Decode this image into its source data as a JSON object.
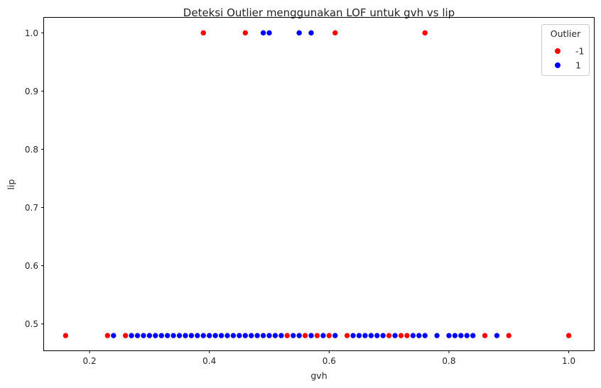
{
  "chart_data": {
    "type": "scatter",
    "title": "Deteksi Outlier menggunakan LOF untuk gvh vs lip",
    "xlabel": "gvh",
    "ylabel": "lip",
    "xlim": [
      0.124,
      1.042
    ],
    "ylim": [
      0.4545,
      1.026
    ],
    "xticks": [
      "0.2",
      "0.4",
      "0.6",
      "0.8",
      "1.0"
    ],
    "yticks": [
      "0.5",
      "0.6",
      "0.7",
      "0.8",
      "0.9",
      "1.0"
    ],
    "grid": false,
    "legend": {
      "title": "Outlier",
      "placement": "top-right",
      "entries": [
        "-1",
        "1"
      ]
    },
    "series": [
      {
        "name": "-1",
        "color": "#ff0000",
        "points": [
          [
            0.39,
            1.0
          ],
          [
            0.46,
            1.0
          ],
          [
            0.61,
            1.0
          ],
          [
            0.76,
            1.0
          ],
          [
            0.16,
            0.48
          ],
          [
            0.23,
            0.48
          ],
          [
            0.26,
            0.48
          ],
          [
            0.53,
            0.48
          ],
          [
            0.56,
            0.48
          ],
          [
            0.58,
            0.48
          ],
          [
            0.6,
            0.48
          ],
          [
            0.63,
            0.48
          ],
          [
            0.7,
            0.48
          ],
          [
            0.72,
            0.48
          ],
          [
            0.73,
            0.48
          ],
          [
            0.86,
            0.48
          ],
          [
            0.9,
            0.48
          ],
          [
            1.0,
            0.48
          ]
        ]
      },
      {
        "name": "1",
        "color": "#0000ff",
        "points": [
          [
            0.49,
            1.0
          ],
          [
            0.5,
            1.0
          ],
          [
            0.55,
            1.0
          ],
          [
            0.57,
            1.0
          ],
          [
            0.24,
            0.48
          ],
          [
            0.27,
            0.48
          ],
          [
            0.28,
            0.48
          ],
          [
            0.29,
            0.48
          ],
          [
            0.3,
            0.48
          ],
          [
            0.31,
            0.48
          ],
          [
            0.32,
            0.48
          ],
          [
            0.33,
            0.48
          ],
          [
            0.34,
            0.48
          ],
          [
            0.35,
            0.48
          ],
          [
            0.36,
            0.48
          ],
          [
            0.37,
            0.48
          ],
          [
            0.38,
            0.48
          ],
          [
            0.39,
            0.48
          ],
          [
            0.4,
            0.48
          ],
          [
            0.41,
            0.48
          ],
          [
            0.42,
            0.48
          ],
          [
            0.43,
            0.48
          ],
          [
            0.44,
            0.48
          ],
          [
            0.45,
            0.48
          ],
          [
            0.46,
            0.48
          ],
          [
            0.47,
            0.48
          ],
          [
            0.48,
            0.48
          ],
          [
            0.49,
            0.48
          ],
          [
            0.5,
            0.48
          ],
          [
            0.51,
            0.48
          ],
          [
            0.52,
            0.48
          ],
          [
            0.54,
            0.48
          ],
          [
            0.55,
            0.48
          ],
          [
            0.57,
            0.48
          ],
          [
            0.59,
            0.48
          ],
          [
            0.61,
            0.48
          ],
          [
            0.64,
            0.48
          ],
          [
            0.65,
            0.48
          ],
          [
            0.66,
            0.48
          ],
          [
            0.67,
            0.48
          ],
          [
            0.68,
            0.48
          ],
          [
            0.69,
            0.48
          ],
          [
            0.71,
            0.48
          ],
          [
            0.74,
            0.48
          ],
          [
            0.75,
            0.48
          ],
          [
            0.76,
            0.48
          ],
          [
            0.78,
            0.48
          ],
          [
            0.8,
            0.48
          ],
          [
            0.81,
            0.48
          ],
          [
            0.82,
            0.48
          ],
          [
            0.83,
            0.48
          ],
          [
            0.84,
            0.48
          ],
          [
            0.88,
            0.48
          ]
        ]
      }
    ]
  }
}
